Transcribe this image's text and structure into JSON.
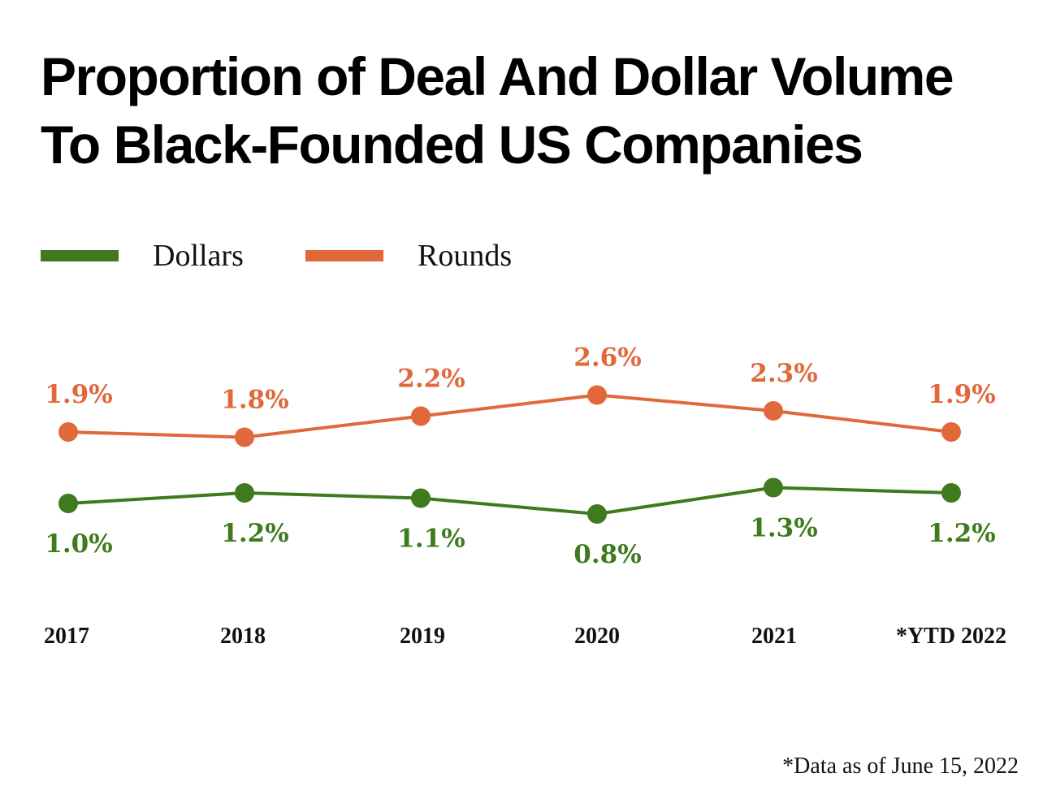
{
  "title": {
    "line1": "Proportion of Deal And Dollar Volume",
    "line2": "To Black-Founded US Companies"
  },
  "legend": [
    {
      "label": "Dollars",
      "color": "#3f7a1e"
    },
    {
      "label": "Rounds",
      "color": "#e0683a"
    }
  ],
  "footnote": "*Data as of June 15, 2022",
  "chart_data": {
    "type": "line",
    "categories": [
      "2017",
      "2018",
      "2019",
      "2020",
      "2021",
      "*YTD 2022"
    ],
    "series": [
      {
        "name": "Dollars",
        "color": "#3f7a1e",
        "values": [
          1.0,
          1.2,
          1.1,
          0.8,
          1.3,
          1.2
        ],
        "labels": [
          "1.0%",
          "1.2%",
          "1.1%",
          "0.8%",
          "1.3%",
          "1.2%"
        ]
      },
      {
        "name": "Rounds",
        "color": "#e0683a",
        "values": [
          1.9,
          1.8,
          2.2,
          2.6,
          2.3,
          1.9
        ],
        "labels": [
          "1.9%",
          "1.8%",
          "2.2%",
          "2.6%",
          "2.3%",
          "1.9%"
        ]
      }
    ],
    "title": "Proportion of Deal And Dollar Volume To Black-Founded US Companies",
    "xlabel": "",
    "ylabel": "",
    "grid": false,
    "legend_position": "top-left"
  }
}
